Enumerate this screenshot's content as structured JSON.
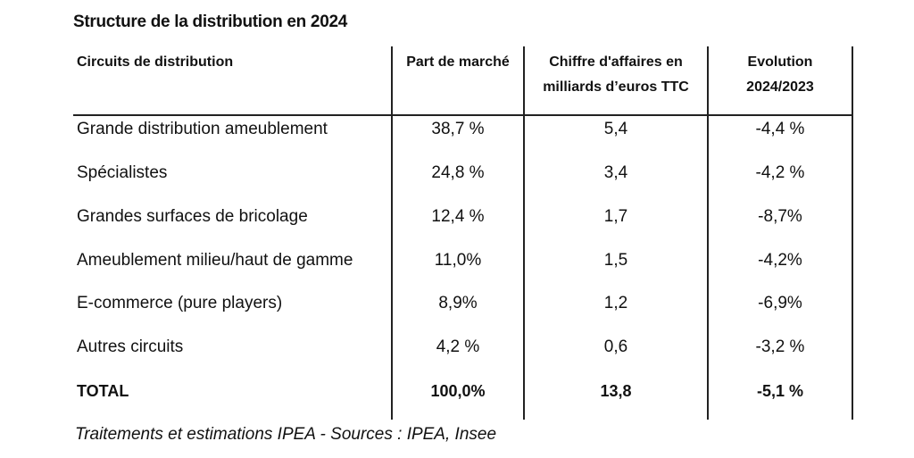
{
  "title": "Structure de la distribution en 2024",
  "headers": {
    "circuit": "Circuits de distribution",
    "part": "Part de marché",
    "ca_line1": "Chiffre d'affaires en",
    "ca_line2": "milliards d’euros TTC",
    "evol_line1": "Evolution",
    "evol_line2": "2024/2023"
  },
  "rows": [
    {
      "circuit": "Grande distribution ameublement",
      "part": "38,7 %",
      "ca": "5,4",
      "evolution": "-4,4 %"
    },
    {
      "circuit": "Spécialistes",
      "part": "24,8 %",
      "ca": "3,4",
      "evolution": "-4,2 %"
    },
    {
      "circuit": "Grandes surfaces de bricolage",
      "part": "12,4 %",
      "ca": "1,7",
      "evolution": "-8,7%"
    },
    {
      "circuit": "Ameublement milieu/haut de gamme",
      "part": "11,0%",
      "ca": "1,5",
      "evolution": "-4,2%"
    },
    {
      "circuit": "E-commerce (pure players)",
      "part": "8,9%",
      "ca": "1,2",
      "evolution": "-6,9%"
    },
    {
      "circuit": "Autres circuits",
      "part": "4,2 %",
      "ca": "0,6",
      "evolution": "-3,2 %"
    }
  ],
  "total": {
    "circuit": "TOTAL",
    "part": "100,0%",
    "ca": "13,8",
    "evolution": "-5,1 %"
  },
  "source": "Traitements et estimations IPEA - Sources : IPEA, Insee"
}
